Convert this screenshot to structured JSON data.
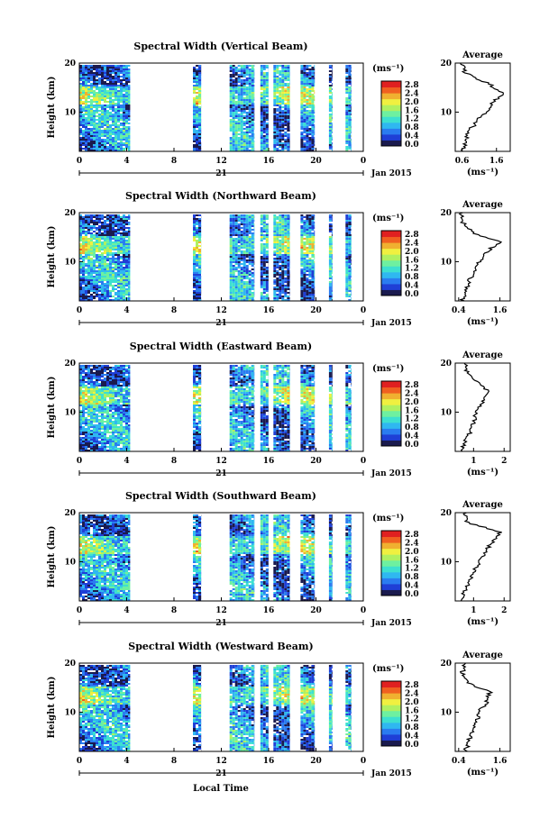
{
  "figure": {
    "xlabel": "Local Time",
    "date_label": "Jan 2015",
    "day_label": "21",
    "ylabel": "Height (km)",
    "colorbar_unit": "(ms⁻¹)",
    "colorbar_ticks": [
      "0.0",
      "0.4",
      "0.8",
      "1.2",
      "1.6",
      "2.0",
      "2.4",
      "2.8"
    ],
    "colormap": [
      "#1a1a4e",
      "#1f3fd6",
      "#2a7cf0",
      "#2fb8f0",
      "#3de0d0",
      "#6ef0a0",
      "#b0f060",
      "#f0f040",
      "#f0b030",
      "#f06020",
      "#e02020"
    ],
    "x_ticks": [
      "0",
      "4",
      "8",
      "12",
      "16",
      "20",
      "0"
    ],
    "y_ticks": [
      "20",
      "10"
    ],
    "avg_title": "Average",
    "avg_xlabel": "(ms⁻¹)"
  },
  "chart_data": [
    {
      "type": "heatmap",
      "title": "Spectral Width (Vertical Beam)",
      "xlim": [
        0,
        24
      ],
      "ylim": [
        2,
        20
      ],
      "data_blocks_hours": [
        [
          0,
          4.3
        ],
        [
          9.6,
          10.3
        ],
        [
          12.7,
          14.8
        ],
        [
          15.3,
          16.0
        ],
        [
          16.4,
          17.8
        ],
        [
          18.7,
          19.9
        ],
        [
          21.1,
          21.4
        ],
        [
          22.5,
          23.0
        ]
      ],
      "profile": {
        "title": "Average",
        "xticks": [
          "0.6",
          "1.6"
        ],
        "xlim": [
          0.4,
          2.0
        ],
        "heights_km": [
          2,
          4,
          6,
          8,
          10,
          12,
          14,
          16,
          18,
          20
        ],
        "values": [
          0.6,
          0.7,
          0.8,
          1.0,
          1.3,
          1.5,
          1.8,
          1.3,
          0.7,
          0.6
        ]
      }
    },
    {
      "type": "heatmap",
      "title": "Spectral Width (Northward Beam)",
      "xlim": [
        0,
        24
      ],
      "ylim": [
        2,
        20
      ],
      "data_blocks_hours": [
        [
          0,
          4.3
        ],
        [
          9.6,
          10.3
        ],
        [
          12.7,
          14.8
        ],
        [
          15.3,
          16.0
        ],
        [
          16.4,
          17.8
        ],
        [
          18.7,
          19.9
        ],
        [
          21.1,
          21.4
        ],
        [
          22.5,
          23.0
        ]
      ],
      "profile": {
        "title": "Average",
        "xticks": [
          "0.4",
          "1.6"
        ],
        "xlim": [
          0.3,
          1.9
        ],
        "heights_km": [
          2,
          4,
          6,
          8,
          10,
          12,
          14,
          16,
          18,
          20
        ],
        "values": [
          0.5,
          0.6,
          0.7,
          0.9,
          1.0,
          1.2,
          1.6,
          0.8,
          0.5,
          0.5
        ]
      }
    },
    {
      "type": "heatmap",
      "title": "Spectral Width (Eastward Beam)",
      "xlim": [
        0,
        24
      ],
      "ylim": [
        2,
        20
      ],
      "data_blocks_hours": [
        [
          0,
          4.3
        ],
        [
          9.6,
          10.3
        ],
        [
          12.7,
          14.8
        ],
        [
          15.3,
          16.0
        ],
        [
          16.4,
          17.8
        ],
        [
          18.7,
          19.9
        ],
        [
          21.1,
          21.4
        ],
        [
          22.5,
          23.0
        ]
      ],
      "profile": {
        "title": "Average",
        "xticks": [
          "1",
          "2"
        ],
        "xlim": [
          0.4,
          2.2
        ],
        "heights_km": [
          2,
          4,
          6,
          8,
          10,
          12,
          14,
          16,
          18,
          20
        ],
        "values": [
          0.6,
          0.7,
          0.9,
          1.0,
          1.1,
          1.3,
          1.5,
          1.2,
          0.8,
          0.7
        ]
      }
    },
    {
      "type": "heatmap",
      "title": "Spectral Width (Southward Beam)",
      "xlim": [
        0,
        24
      ],
      "ylim": [
        2,
        20
      ],
      "data_blocks_hours": [
        [
          0,
          4.3
        ],
        [
          9.6,
          10.3
        ],
        [
          12.7,
          14.8
        ],
        [
          15.3,
          16.0
        ],
        [
          16.4,
          17.8
        ],
        [
          18.7,
          19.9
        ],
        [
          21.1,
          21.4
        ],
        [
          22.5,
          23.0
        ]
      ],
      "profile": {
        "title": "Average",
        "xticks": [
          "1",
          "2"
        ],
        "xlim": [
          0.4,
          2.2
        ],
        "heights_km": [
          2,
          4,
          6,
          8,
          10,
          12,
          14,
          16,
          18,
          20
        ],
        "values": [
          0.6,
          0.7,
          0.9,
          1.0,
          1.2,
          1.4,
          1.6,
          1.9,
          0.8,
          0.7
        ]
      }
    },
    {
      "type": "heatmap",
      "title": "Spectral Width (Westward Beam)",
      "xlim": [
        0,
        24
      ],
      "ylim": [
        2,
        20
      ],
      "data_blocks_hours": [
        [
          0,
          4.3
        ],
        [
          9.6,
          10.3
        ],
        [
          12.7,
          14.8
        ],
        [
          15.3,
          16.0
        ],
        [
          16.4,
          17.8
        ],
        [
          18.7,
          19.9
        ],
        [
          21.1,
          21.4
        ],
        [
          22.5,
          23.0
        ]
      ],
      "profile": {
        "title": "Average",
        "xticks": [
          "0.4",
          "1.6"
        ],
        "xlim": [
          0.3,
          1.9
        ],
        "heights_km": [
          2,
          4,
          6,
          8,
          10,
          12,
          14,
          16,
          18,
          20
        ],
        "values": [
          0.6,
          0.7,
          0.8,
          0.9,
          1.0,
          1.2,
          1.3,
          0.7,
          0.5,
          0.6
        ]
      }
    }
  ]
}
